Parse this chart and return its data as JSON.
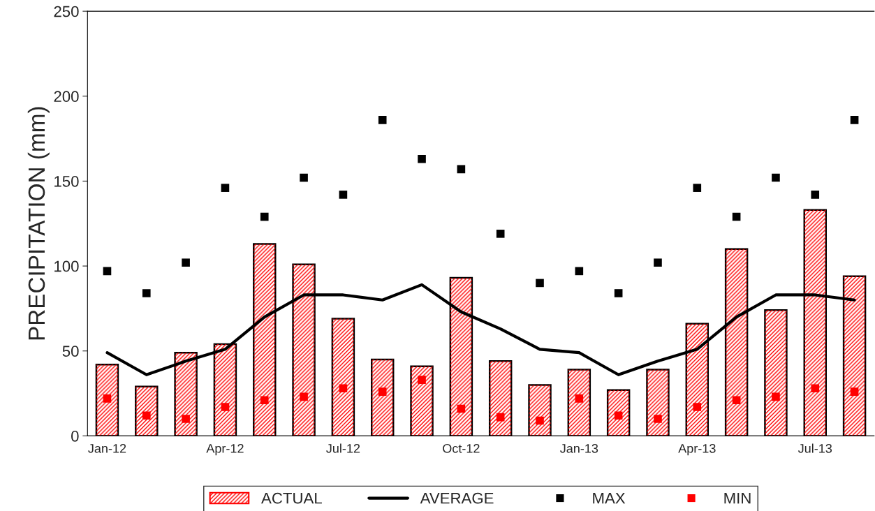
{
  "chart_data": {
    "type": "bar",
    "ylabel": "PRECIPITATION (mm)",
    "categories": [
      "Jan-12",
      null,
      null,
      "Apr-12",
      null,
      null,
      "Jul-12",
      null,
      null,
      "Oct-12",
      null,
      null,
      "Jan-13",
      null,
      null,
      "Apr-13",
      null,
      null,
      "Jul-13",
      null
    ],
    "series": [
      {
        "name": "ACTUAL",
        "color": "#ff0000",
        "values": [
          42,
          29,
          49,
          54,
          113,
          101,
          69,
          45,
          41,
          93,
          44,
          30,
          39,
          27,
          39,
          66,
          110,
          74,
          133,
          94
        ]
      },
      {
        "name": "AVERAGE",
        "type": "line",
        "color": "#000000",
        "marker": "none",
        "line_style": "solid",
        "values": [
          49,
          36,
          44,
          51,
          70,
          83,
          83,
          80,
          89,
          73,
          63,
          51,
          49,
          36,
          44,
          51,
          70,
          83,
          83,
          80
        ]
      },
      {
        "name": "MAX",
        "type": "scatter",
        "color": "#000000",
        "marker": "square",
        "values": [
          97,
          84,
          102,
          146,
          129,
          152,
          142,
          186,
          163,
          157,
          119,
          90,
          97,
          84,
          102,
          146,
          129,
          152,
          142,
          186
        ]
      },
      {
        "name": "MIN",
        "type": "scatter",
        "color": "#ff0000",
        "marker": "square",
        "values": [
          22,
          12,
          10,
          17,
          21,
          23,
          28,
          26,
          33,
          16,
          11,
          9,
          22,
          12,
          10,
          17,
          21,
          23,
          28,
          26
        ]
      }
    ],
    "ylim": [
      0,
      250
    ],
    "yticks": [
      0,
      50,
      100,
      150,
      200,
      250
    ],
    "grid": false,
    "legend": "bottom"
  }
}
